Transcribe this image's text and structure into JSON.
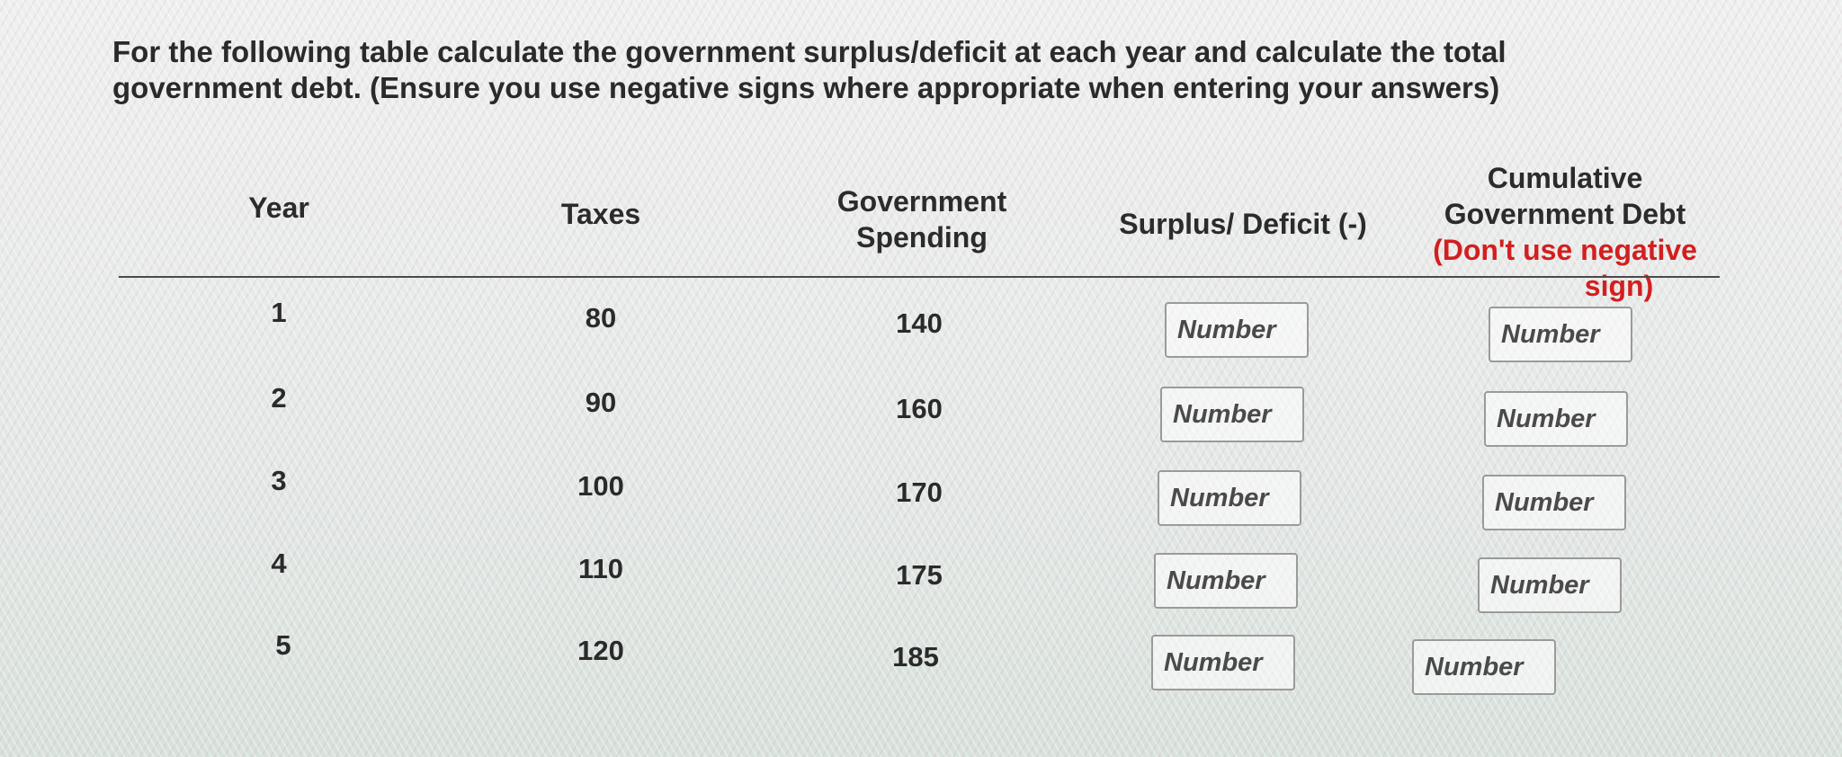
{
  "question": {
    "line1": "For the following table calculate the government surplus/deficit at each year and calculate the total",
    "line2": "government debt. (Ensure you use negative signs where appropriate when entering your answers)"
  },
  "table": {
    "headers": {
      "year": "Year",
      "taxes": "Taxes",
      "spending_line1": "Government",
      "spending_line2": "Spending",
      "surplus": "Surplus/ Deficit (-)",
      "debt_line1": "Cumulative",
      "debt_line2": "Government Debt",
      "debt_warn_line1": "(Don't use negative",
      "debt_warn_line2": "sign)"
    },
    "warn_color": "#d21f1f",
    "rows": [
      {
        "year": "1",
        "taxes": "80",
        "spending": "140",
        "surplus_placeholder": "Number",
        "debt_placeholder": "Number"
      },
      {
        "year": "2",
        "taxes": "90",
        "spending": "160",
        "surplus_placeholder": "Number",
        "debt_placeholder": "Number"
      },
      {
        "year": "3",
        "taxes": "100",
        "spending": "170",
        "surplus_placeholder": "Number",
        "debt_placeholder": "Number"
      },
      {
        "year": "4",
        "taxes": "110",
        "spending": "175",
        "surplus_placeholder": "Number",
        "debt_placeholder": "Number"
      },
      {
        "year": "5",
        "taxes": "120",
        "spending": "185",
        "surplus_placeholder": "Number",
        "debt_placeholder": "Number"
      }
    ]
  }
}
